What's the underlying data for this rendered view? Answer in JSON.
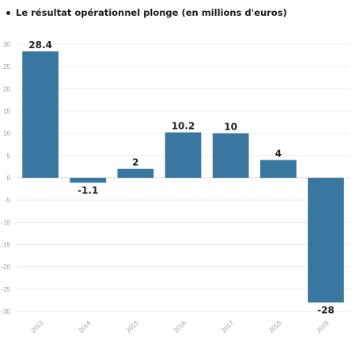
{
  "title": "Le résultat opérationnel plonge (en millions d'euros)",
  "colors": {
    "bar": "#3a77a0",
    "text": "#222222",
    "grid": "#ececec"
  },
  "chart_data": {
    "type": "bar",
    "title": "Le résultat opérationnel plonge (en millions d'euros)",
    "xlabel": "",
    "ylabel": "",
    "categories": [
      "2013",
      "2014",
      "2015",
      "2016",
      "2017",
      "2018",
      "2019"
    ],
    "values": [
      28.4,
      -1.1,
      2,
      10.2,
      10,
      4,
      -28
    ],
    "value_labels": [
      "28.4",
      "-1.1",
      "2",
      "10.2",
      "10",
      "4",
      "-28"
    ],
    "ylim": [
      -30,
      30
    ],
    "yticks": [
      30,
      25,
      20,
      15,
      10,
      5,
      0,
      -5,
      -10,
      -15,
      -20,
      -25,
      -30
    ],
    "grid": true
  }
}
